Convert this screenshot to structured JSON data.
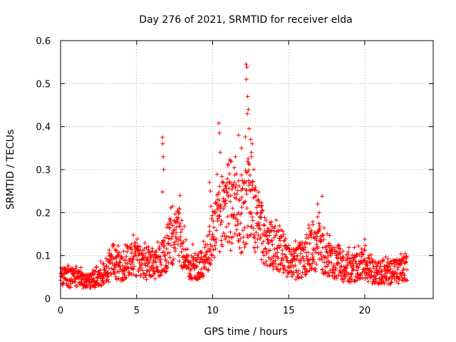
{
  "chart_data": {
    "type": "scatter",
    "title": "Day 276 of 2021, SRMTID for receiver elda",
    "xlabel": "GPS time / hours",
    "ylabel": "SRMTID / TECUs",
    "xlim": [
      0,
      24.5
    ],
    "ylim": [
      0,
      0.6
    ],
    "xticks": [
      0,
      5,
      10,
      15,
      20
    ],
    "yticks": [
      0,
      0.1,
      0.2,
      0.3,
      0.4,
      0.5,
      0.6
    ],
    "xtick_labels": [
      "0",
      "5",
      "10",
      "15",
      "20"
    ],
    "ytick_labels": [
      "0",
      "0.1",
      "0.2",
      "0.3",
      "0.4",
      "0.5",
      "0.6"
    ],
    "grid": true,
    "marker": "+",
    "color": "#ff0000",
    "x_range_data": [
      0,
      22.8
    ],
    "profile": [
      {
        "x": 0.0,
        "y": 0.05
      },
      {
        "x": 1.0,
        "y": 0.045
      },
      {
        "x": 2.0,
        "y": 0.04
      },
      {
        "x": 3.0,
        "y": 0.06
      },
      {
        "x": 3.5,
        "y": 0.08
      },
      {
        "x": 4.0,
        "y": 0.07
      },
      {
        "x": 4.7,
        "y": 0.1
      },
      {
        "x": 5.3,
        "y": 0.08
      },
      {
        "x": 6.0,
        "y": 0.08
      },
      {
        "x": 6.6,
        "y": 0.09
      },
      {
        "x": 7.2,
        "y": 0.13
      },
      {
        "x": 7.8,
        "y": 0.15
      },
      {
        "x": 8.3,
        "y": 0.08
      },
      {
        "x": 9.0,
        "y": 0.07
      },
      {
        "x": 9.6,
        "y": 0.09
      },
      {
        "x": 10.0,
        "y": 0.15
      },
      {
        "x": 10.6,
        "y": 0.2
      },
      {
        "x": 11.2,
        "y": 0.19
      },
      {
        "x": 11.8,
        "y": 0.18
      },
      {
        "x": 12.3,
        "y": 0.24
      },
      {
        "x": 12.9,
        "y": 0.17
      },
      {
        "x": 13.5,
        "y": 0.13
      },
      {
        "x": 14.2,
        "y": 0.12
      },
      {
        "x": 14.8,
        "y": 0.09
      },
      {
        "x": 15.5,
        "y": 0.08
      },
      {
        "x": 16.2,
        "y": 0.1
      },
      {
        "x": 17.0,
        "y": 0.12
      },
      {
        "x": 17.6,
        "y": 0.09
      },
      {
        "x": 18.5,
        "y": 0.07
      },
      {
        "x": 19.3,
        "y": 0.07
      },
      {
        "x": 20.0,
        "y": 0.08
      },
      {
        "x": 20.6,
        "y": 0.06
      },
      {
        "x": 21.5,
        "y": 0.06
      },
      {
        "x": 22.3,
        "y": 0.065
      },
      {
        "x": 22.8,
        "y": 0.07
      }
    ],
    "outliers": [
      {
        "x": 6.7,
        "y": 0.375
      },
      {
        "x": 6.72,
        "y": 0.36
      },
      {
        "x": 6.75,
        "y": 0.33
      },
      {
        "x": 6.78,
        "y": 0.3
      },
      {
        "x": 6.7,
        "y": 0.248
      },
      {
        "x": 7.8,
        "y": 0.21
      },
      {
        "x": 7.85,
        "y": 0.24
      },
      {
        "x": 9.8,
        "y": 0.27
      },
      {
        "x": 9.85,
        "y": 0.25
      },
      {
        "x": 10.4,
        "y": 0.408
      },
      {
        "x": 10.45,
        "y": 0.385
      },
      {
        "x": 10.5,
        "y": 0.34
      },
      {
        "x": 11.0,
        "y": 0.31
      },
      {
        "x": 11.1,
        "y": 0.29
      },
      {
        "x": 11.5,
        "y": 0.33
      },
      {
        "x": 11.7,
        "y": 0.38
      },
      {
        "x": 11.9,
        "y": 0.35
      },
      {
        "x": 12.2,
        "y": 0.545
      },
      {
        "x": 12.25,
        "y": 0.538
      },
      {
        "x": 12.22,
        "y": 0.51
      },
      {
        "x": 12.3,
        "y": 0.47
      },
      {
        "x": 12.35,
        "y": 0.44
      },
      {
        "x": 12.28,
        "y": 0.43
      },
      {
        "x": 12.4,
        "y": 0.395
      },
      {
        "x": 12.5,
        "y": 0.37
      },
      {
        "x": 12.6,
        "y": 0.36
      },
      {
        "x": 12.55,
        "y": 0.33
      },
      {
        "x": 12.7,
        "y": 0.3
      },
      {
        "x": 13.0,
        "y": 0.23
      },
      {
        "x": 13.2,
        "y": 0.2
      },
      {
        "x": 16.9,
        "y": 0.22
      },
      {
        "x": 17.0,
        "y": 0.2
      },
      {
        "x": 17.2,
        "y": 0.238
      },
      {
        "x": 20.0,
        "y": 0.138
      }
    ]
  }
}
